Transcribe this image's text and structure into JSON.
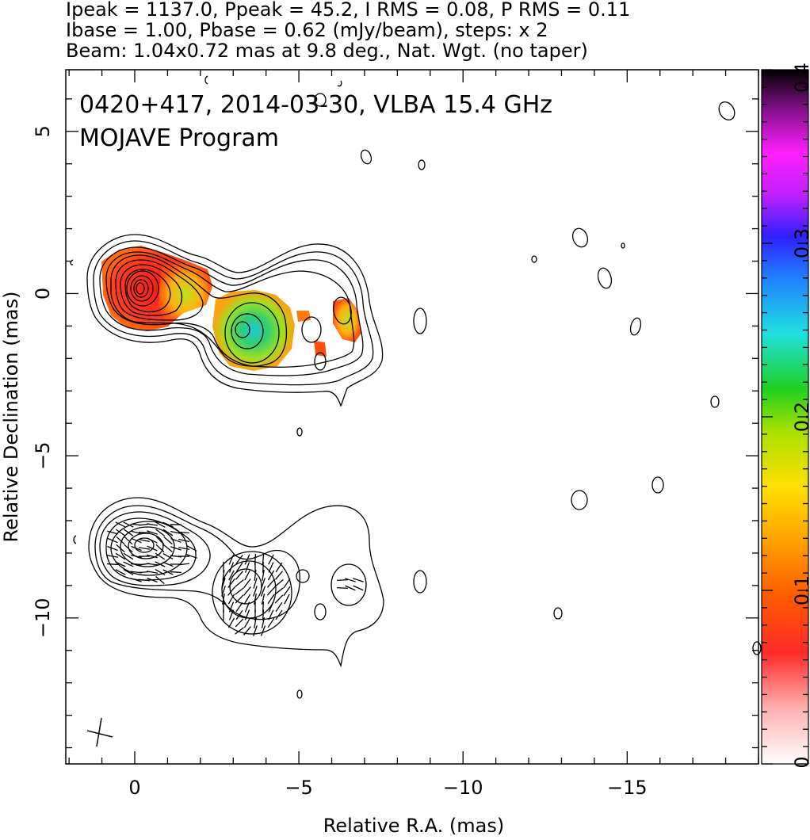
{
  "header": {
    "line1": "Ipeak = 1137.0, Ppeak = 45.2, I RMS = 0.08, P RMS = 0.11",
    "line2": "Ibase = 1.00, Pbase = 0.62 (mJy/beam), steps: x 2",
    "line3": "Beam: 1.04x0.72 mas at 9.8 deg., Nat. Wgt. (no taper)"
  },
  "annotation": {
    "line1": "0420+417, 2014-03-30, VLBA 15.4 GHz",
    "line2": "MOJAVE Program"
  },
  "axes": {
    "xlabel": "Relative R.A. (mas)",
    "ylabel": "Relative Declination (mas)"
  },
  "colorbar": {
    "min": 0,
    "max": 0.4,
    "tick_labels": [
      "0",
      "0.1",
      "0.2",
      "0.3",
      "0.4"
    ]
  },
  "chart_data": {
    "type": "contour",
    "xlim": [
      2.1,
      -19.0
    ],
    "ylim": [
      -14.5,
      6.9
    ],
    "x_ticks": [
      0,
      -5,
      -10,
      -15
    ],
    "x_tick_labels": [
      "0",
      "−5",
      "−10",
      "−15"
    ],
    "y_ticks": [
      5,
      0,
      -5,
      -10
    ],
    "y_tick_labels": [
      "5",
      "0",
      "−5",
      "−10"
    ],
    "upper_panel": {
      "description_values": {
        "core": [
          0,
          0
        ],
        "knot": [
          -3.2,
          -1.2
        ],
        "outer_knot": [
          -6.3,
          -0.7
        ]
      },
      "fractional_pol_blobs": [
        {
          "x": 0,
          "y": 0.2,
          "value": 0.06
        },
        {
          "x": -1.3,
          "y": -0.1,
          "value": 0.12
        },
        {
          "x": -2.1,
          "y": 0.0,
          "value": 0.13
        },
        {
          "x": -3.2,
          "y": -1.2,
          "value": 0.24
        },
        {
          "x": -4.3,
          "y": -1.4,
          "value": 0.18
        },
        {
          "x": -5.6,
          "y": -1.7,
          "value": 0.08
        },
        {
          "x": -6.3,
          "y": -0.8,
          "value": 0.12
        }
      ]
    },
    "lower_panel": {
      "core": [
        0,
        -7.9
      ],
      "knot": [
        -3.2,
        -9.2
      ],
      "outer_knot": [
        -6.3,
        -9.0
      ]
    }
  }
}
